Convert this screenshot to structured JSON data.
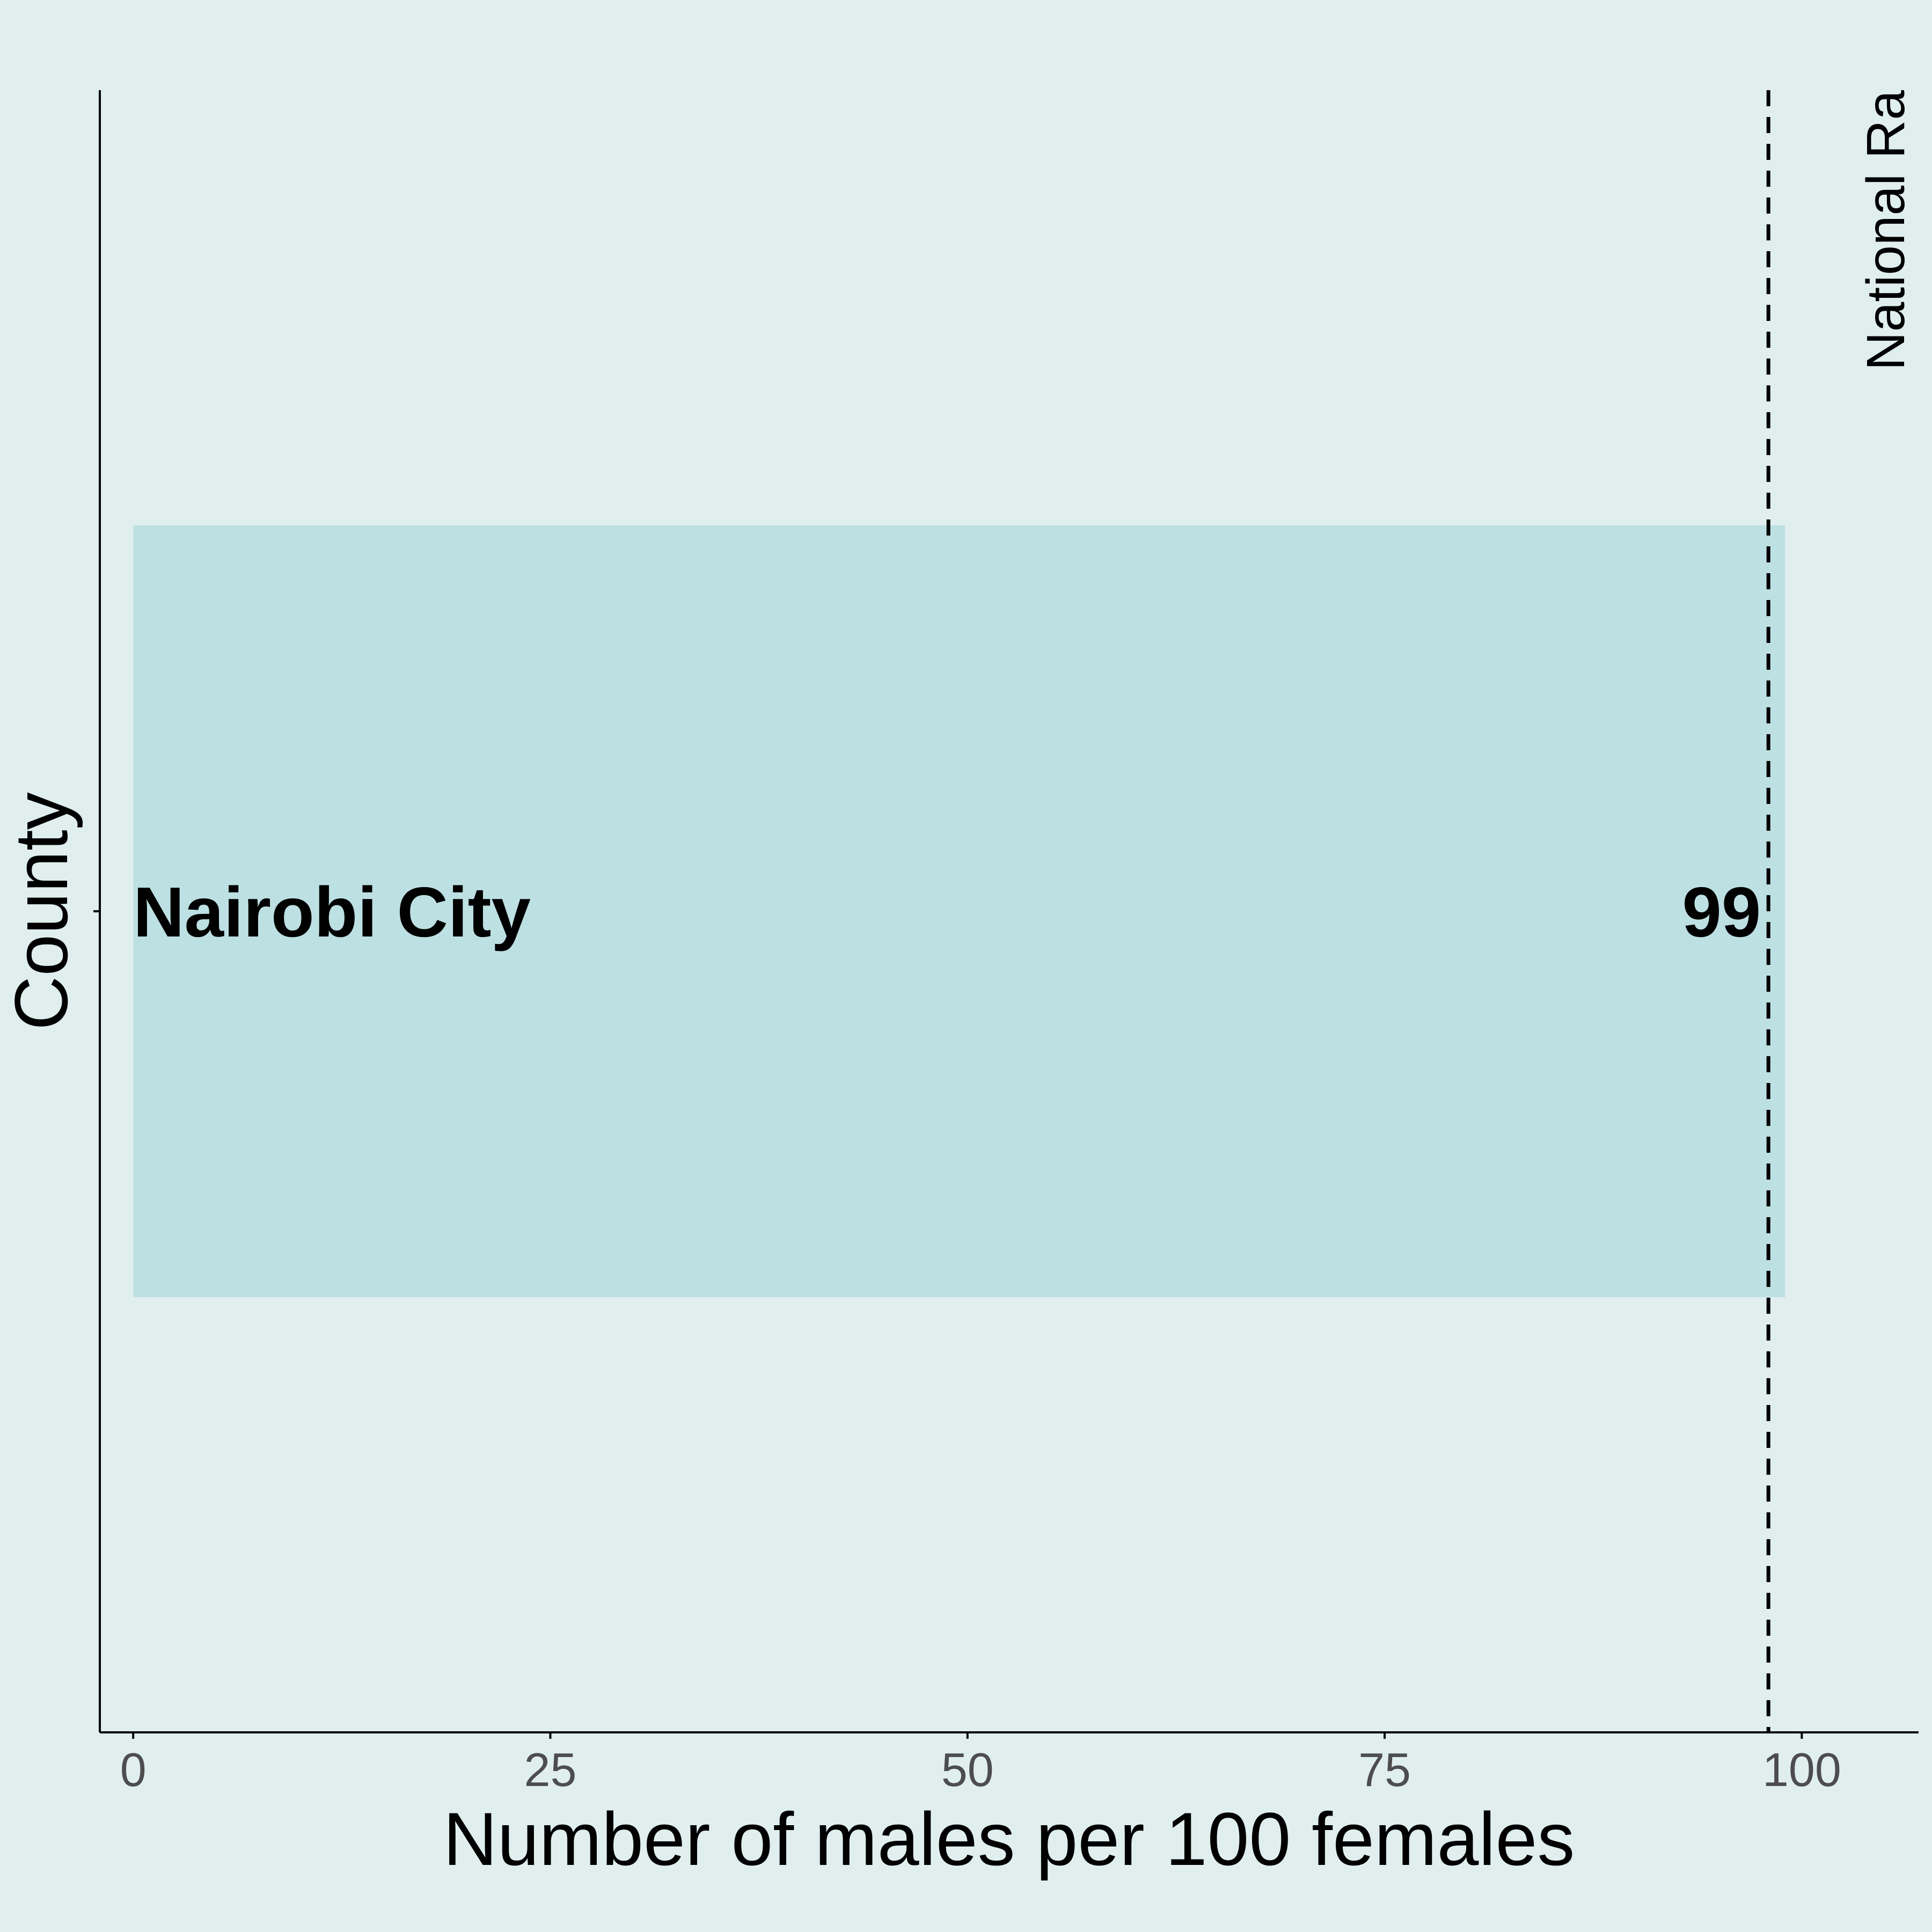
{
  "chart_data": {
    "type": "bar",
    "orientation": "horizontal",
    "categories": [
      "Nairobi City"
    ],
    "values": [
      99
    ],
    "data_labels": [
      "99"
    ],
    "title": "",
    "xlabel": "Number of males per 100 females",
    "ylabel": "County",
    "xlim": [
      -2,
      107
    ],
    "x_ticks": [
      0,
      25,
      50,
      75,
      100
    ],
    "x_tick_labels": [
      "0",
      "25",
      "50",
      "75",
      "100"
    ],
    "grid": false,
    "legend": "none",
    "reference_line": {
      "value": 98,
      "style": "dashed",
      "label": "National Ra"
    },
    "colors": {
      "background": "#e0eeee",
      "bar": "#bde0e3",
      "axis": "#000000",
      "tick_text": "#4d4d4d",
      "reference_line": "#000000"
    }
  }
}
